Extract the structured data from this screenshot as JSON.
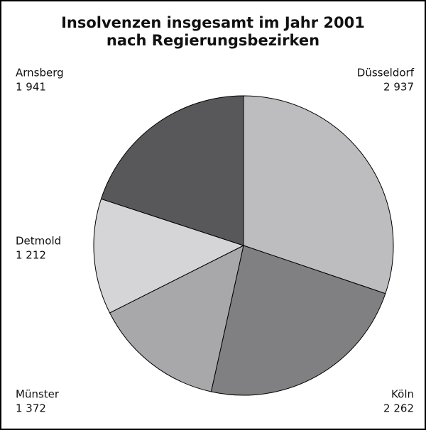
{
  "chart_data": {
    "type": "pie",
    "title": "Insolvenzen insgesamt im Jahr 2001",
    "subtitle": "nach Regierungsbezirken",
    "categories": [
      "Düsseldorf",
      "Köln",
      "Münster",
      "Detmold",
      "Arnsberg"
    ],
    "values": [
      2937,
      2262,
      1372,
      1212,
      1941
    ],
    "value_labels": [
      "2 937",
      "2 262",
      "1 372",
      "1 212",
      "1 941"
    ],
    "colors": [
      "#bdbdbf",
      "#808083",
      "#a8a8aa",
      "#d5d5d7",
      "#58585a"
    ]
  }
}
